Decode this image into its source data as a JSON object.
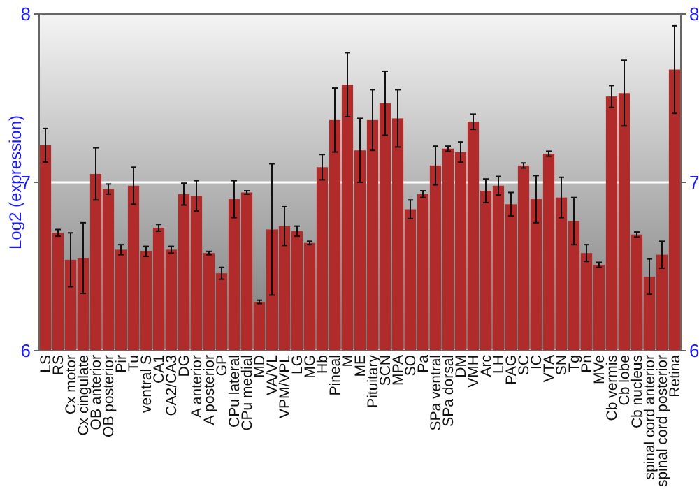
{
  "chart_data": {
    "type": "bar",
    "ylabel": "Log2 (expression)",
    "categories": [
      "LS",
      "RS",
      "Cx motor",
      "Cx cingulate",
      "OB anterior",
      "OB posterior",
      "Pir",
      "Tu",
      "ventral S",
      "CA1",
      "CA2/CA3",
      "DG",
      "A anterior",
      "A posterior",
      "GP",
      "CPu lateral",
      "CPu medial",
      "MD",
      "VA/VL",
      "VPM/VPL",
      "LG",
      "MG",
      "Hb",
      "Pineal",
      "M",
      "ME",
      "Pituitary",
      "SCN",
      "MPA",
      "SO",
      "Pa",
      "SPa ventral",
      "SPa dorsal",
      "DM",
      "VMH",
      "Arc",
      "LH",
      "PAG",
      "SC",
      "IC",
      "VTA",
      "SN",
      "Tg",
      "Pn",
      "MVe",
      "Cb vermis",
      "Cb lobe",
      "Cb nucleus",
      "spinal cord anterior",
      "spinal cord posterior",
      "Retina"
    ],
    "values": [
      7.22,
      6.7,
      6.54,
      6.55,
      7.05,
      6.96,
      6.6,
      6.98,
      6.59,
      6.73,
      6.6,
      6.93,
      6.92,
      6.58,
      6.46,
      6.9,
      6.94,
      6.29,
      6.72,
      6.74,
      6.71,
      6.64,
      7.09,
      7.37,
      7.58,
      7.19,
      7.37,
      7.47,
      7.38,
      6.84,
      6.93,
      7.1,
      7.2,
      7.18,
      7.36,
      6.95,
      6.98,
      6.87,
      7.1,
      6.9,
      7.17,
      6.91,
      6.77,
      6.58,
      6.51,
      7.51,
      7.53,
      6.69,
      6.44,
      6.57,
      7.67
    ],
    "errors": [
      0.1,
      0.02,
      0.16,
      0.21,
      0.155,
      0.03,
      0.03,
      0.11,
      0.03,
      0.02,
      0.02,
      0.065,
      0.09,
      0.01,
      0.035,
      0.11,
      0.01,
      0.01,
      0.39,
      0.115,
      0.03,
      0.01,
      0.075,
      0.19,
      0.19,
      0.19,
      0.18,
      0.19,
      0.17,
      0.055,
      0.02,
      0.115,
      0.015,
      0.06,
      0.045,
      0.07,
      0.055,
      0.07,
      0.015,
      0.14,
      0.015,
      0.12,
      0.14,
      0.05,
      0.015,
      0.065,
      0.195,
      0.015,
      0.105,
      0.08,
      0.26
    ],
    "color": "#b22b2b",
    "ylim": [
      6,
      8
    ],
    "yticks": [
      6,
      7,
      8
    ],
    "y2lim": [
      6,
      8
    ],
    "y2ticks": [
      6,
      7,
      8
    ],
    "grid": "y"
  }
}
